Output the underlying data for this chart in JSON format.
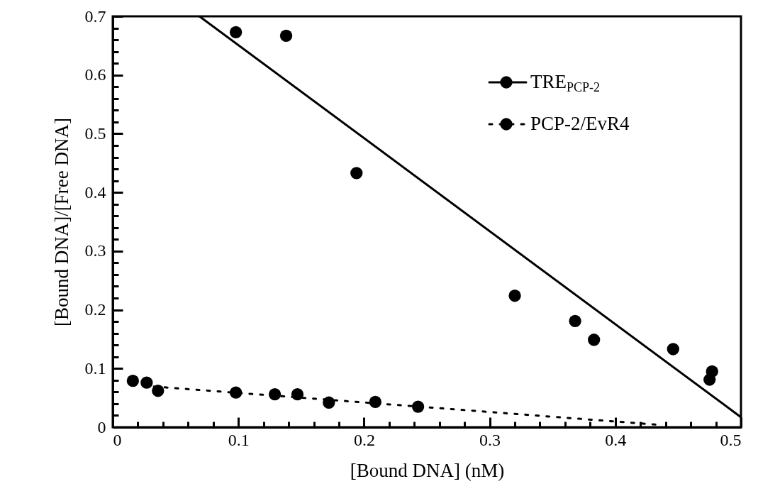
{
  "chart_data": {
    "type": "scatter",
    "xlabel": "[Bound DNA]  (nM)",
    "ylabel": "[Bound DNA]/[Free DNA]",
    "xlim": [
      0,
      0.5
    ],
    "ylim": [
      0,
      0.7
    ],
    "xticks": [
      0,
      {
        "value": 0.02,
        "label": null
      },
      {
        "value": 0.04,
        "label": null
      },
      {
        "value": 0.06,
        "label": null
      },
      {
        "value": 0.08,
        "label": null
      },
      0.1,
      {
        "value": 0.12,
        "label": null
      },
      {
        "value": 0.14,
        "label": null
      },
      {
        "value": 0.16,
        "label": null
      },
      {
        "value": 0.18,
        "label": null
      },
      0.2,
      {
        "value": 0.22,
        "label": null
      },
      {
        "value": 0.24,
        "label": null
      },
      {
        "value": 0.26,
        "label": null
      },
      {
        "value": 0.28,
        "label": null
      },
      0.3,
      {
        "value": 0.32,
        "label": null
      },
      {
        "value": 0.34,
        "label": null
      },
      {
        "value": 0.36,
        "label": null
      },
      {
        "value": 0.38,
        "label": null
      },
      0.4,
      {
        "value": 0.42,
        "label": null
      },
      {
        "value": 0.44,
        "label": null
      },
      {
        "value": 0.46,
        "label": null
      },
      {
        "value": 0.48,
        "label": null
      },
      0.5
    ],
    "yticks": [
      0,
      {
        "value": 0.02,
        "label": null
      },
      {
        "value": 0.04,
        "label": null
      },
      {
        "value": 0.06,
        "label": null
      },
      {
        "value": 0.08,
        "label": null
      },
      0.1,
      {
        "value": 0.12,
        "label": null
      },
      {
        "value": 0.14,
        "label": null
      },
      {
        "value": 0.16,
        "label": null
      },
      {
        "value": 0.18,
        "label": null
      },
      0.2,
      {
        "value": 0.22,
        "label": null
      },
      {
        "value": 0.24,
        "label": null
      },
      {
        "value": 0.26,
        "label": null
      },
      {
        "value": 0.28,
        "label": null
      },
      0.3,
      {
        "value": 0.32,
        "label": null
      },
      {
        "value": 0.34,
        "label": null
      },
      {
        "value": 0.36,
        "label": null
      },
      {
        "value": 0.38,
        "label": null
      },
      0.4,
      {
        "value": 0.42,
        "label": null
      },
      {
        "value": 0.44,
        "label": null
      },
      {
        "value": 0.46,
        "label": null
      },
      {
        "value": 0.48,
        "label": null
      },
      0.5,
      {
        "value": 0.52,
        "label": null
      },
      {
        "value": 0.54,
        "label": null
      },
      {
        "value": 0.56,
        "label": null
      },
      {
        "value": 0.58,
        "label": null
      },
      0.6,
      {
        "value": 0.62,
        "label": null
      },
      {
        "value": 0.64,
        "label": null
      },
      {
        "value": 0.66,
        "label": null
      },
      {
        "value": 0.68,
        "label": null
      },
      0.7
    ],
    "grid": false,
    "legend": "top right",
    "series": [
      {
        "name": "TRE$_{PCP-2}$",
        "marker": "circle",
        "color": "#000000",
        "x": [
          0.098,
          0.138,
          0.194,
          0.32,
          0.368,
          0.383,
          0.446,
          0.477,
          0.475
        ],
        "values": [
          0.673,
          0.667,
          0.433,
          0.224,
          0.181,
          0.149,
          0.133,
          0.095,
          0.081
        ]
      },
      {
        "type": "line",
        "marker": "none",
        "line_style": "solid",
        "color": "#000000",
        "x": [
          0.069,
          0.5
        ],
        "values": [
          0.7,
          0.017
        ]
      },
      {
        "name": "PCP-2/EvR4",
        "marker": "circle",
        "color": "#000000",
        "x": [
          0.016,
          0.027,
          0.036,
          0.098,
          0.129,
          0.147,
          0.172,
          0.209,
          0.243
        ],
        "values": [
          0.079,
          0.076,
          0.062,
          0.059,
          0.056,
          0.056,
          0.042,
          0.043,
          0.035
        ]
      },
      {
        "type": "line",
        "marker": "none",
        "line_style": "dotted",
        "color": "#000000",
        "x": [
          0.016,
          0.435
        ],
        "values": [
          0.072,
          0.004
        ]
      }
    ]
  }
}
